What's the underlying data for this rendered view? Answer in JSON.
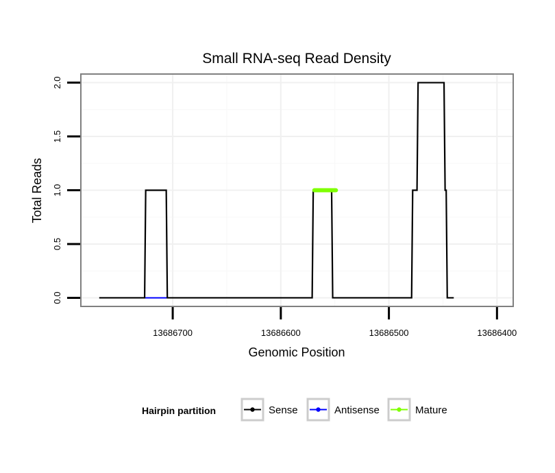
{
  "chart_data": {
    "type": "line",
    "title": "Small RNA-seq Read Density",
    "xlabel": "Genomic Position",
    "ylabel": "Total Reads",
    "xlim": [
      13686785,
      13686385
    ],
    "x_reversed": true,
    "ylim": [
      -0.08,
      2.08
    ],
    "x_ticks": [
      13686700,
      13686600,
      13686500,
      13686400
    ],
    "x_tick_labels": [
      "13686700",
      "13686600",
      "13686500",
      "13686400"
    ],
    "y_ticks": [
      0,
      0.5,
      1,
      1.5,
      2
    ],
    "y_tick_labels": [
      "0.0",
      "0.5",
      "1.0",
      "1.5",
      "2.0"
    ],
    "grid": true,
    "legend": {
      "title": "Hairpin partition",
      "position": "bottom",
      "entries": [
        "Sense",
        "Antisense",
        "Mature"
      ]
    },
    "series": [
      {
        "name": "Sense",
        "color": "#000000",
        "x": [
          13686768,
          13686726,
          13686725,
          13686706,
          13686705,
          13686571,
          13686570,
          13686553,
          13686552,
          13686479,
          13686478,
          13686474,
          13686473,
          13686449,
          13686448,
          13686447,
          13686446,
          13686440
        ],
        "y": [
          0,
          0,
          1,
          1,
          0,
          0,
          1,
          1,
          0,
          0,
          1,
          1,
          2,
          2,
          1,
          1,
          0,
          0
        ]
      },
      {
        "name": "Antisense",
        "color": "#0000ff",
        "x": [
          13686726,
          13686705,
          13686571,
          13686552,
          13686479,
          13686446
        ],
        "y": [
          0,
          0,
          null,
          0,
          0,
          null
        ]
      },
      {
        "name": "Mature",
        "color": "#7fff00",
        "x": [
          13686569,
          13686549
        ],
        "y": [
          1,
          1
        ]
      }
    ]
  }
}
